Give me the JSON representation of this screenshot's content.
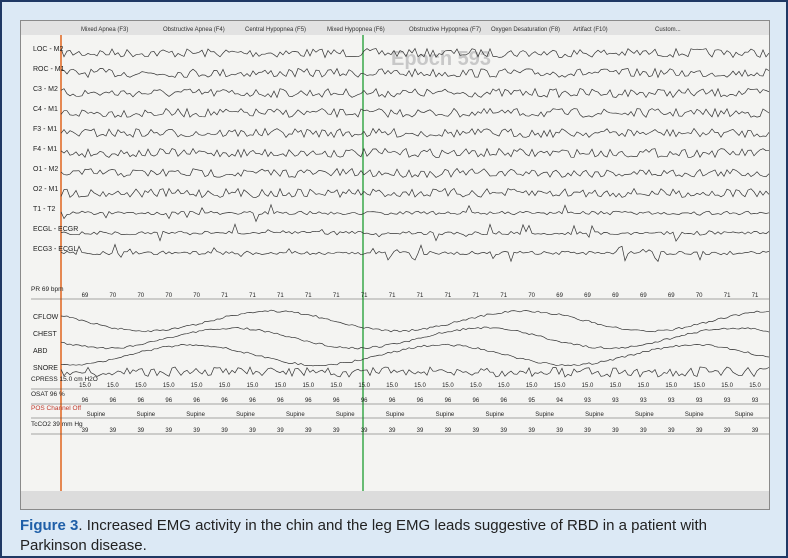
{
  "toolbar": [
    "Mixed Apnea (F3)",
    "Obstructive Apnea (F4)",
    "Central Hypopnea (F5)",
    "Mixed Hypopnea (F6)",
    "Obstructive Hypopnea (F7)",
    "Oxygen Desaturation (F8)",
    "Artifact (F10)",
    "Custom..."
  ],
  "epoch": "Epoch 593",
  "channels": [
    "LOC - M2",
    "ROC - M1",
    "C3 - M2",
    "C4 - M1",
    "F3 - M1",
    "F4 - M1",
    "O1 - M2",
    "O2 - M1",
    "T1 - T2",
    "ECGL - ECGR",
    "ECG3 - ECGL",
    "CFLOW",
    "CHEST",
    "ABD",
    "SNORE"
  ],
  "value_rows": [
    {
      "label": "PR 69 bpm",
      "values": [
        "69",
        "70",
        "70",
        "70",
        "70",
        "71",
        "71",
        "71",
        "71",
        "71",
        "71",
        "71",
        "71",
        "71",
        "71",
        "71",
        "70",
        "69",
        "69",
        "69",
        "69",
        "69",
        "70",
        "71",
        "71"
      ]
    },
    {
      "label": "CPRESS 15.0 cm H2O",
      "values": [
        "15.0",
        "15.0",
        "15.0",
        "15.0",
        "15.0",
        "15.0",
        "15.0",
        "15.0",
        "15.0",
        "15.0",
        "15.0",
        "15.0",
        "15.0",
        "15.0",
        "15.0",
        "15.0",
        "15.0",
        "15.0",
        "15.0",
        "15.0",
        "15.0",
        "15.0",
        "15.0",
        "15.0",
        "15.0"
      ]
    },
    {
      "label": "OSAT 96 %",
      "values": [
        "96",
        "96",
        "96",
        "96",
        "96",
        "96",
        "96",
        "96",
        "96",
        "96",
        "96",
        "96",
        "96",
        "96",
        "96",
        "96",
        "95",
        "94",
        "93",
        "93",
        "93",
        "93",
        "93",
        "93",
        "93"
      ]
    },
    {
      "label": "POS Channel Off",
      "values": [
        "Supine",
        "Supine",
        "Supine",
        "Supine",
        "Supine",
        "Supine",
        "Supine",
        "Supine",
        "Supine",
        "Supine",
        "Supine",
        "Supine",
        "Supine",
        "Supine"
      ]
    },
    {
      "label": "TcCO2 39 mm Hg",
      "values": [
        "39",
        "39",
        "39",
        "39",
        "39",
        "39",
        "39",
        "39",
        "39",
        "39",
        "39",
        "39",
        "39",
        "39",
        "39",
        "39",
        "39",
        "39",
        "39",
        "39",
        "39",
        "39",
        "39",
        "39",
        "39"
      ]
    }
  ],
  "caption": {
    "label": "Figure 3",
    "text": ". Increased EMG activity in the chin and the leg EMG leads suggestive of RBD in a patient with Parkinson disease."
  }
}
